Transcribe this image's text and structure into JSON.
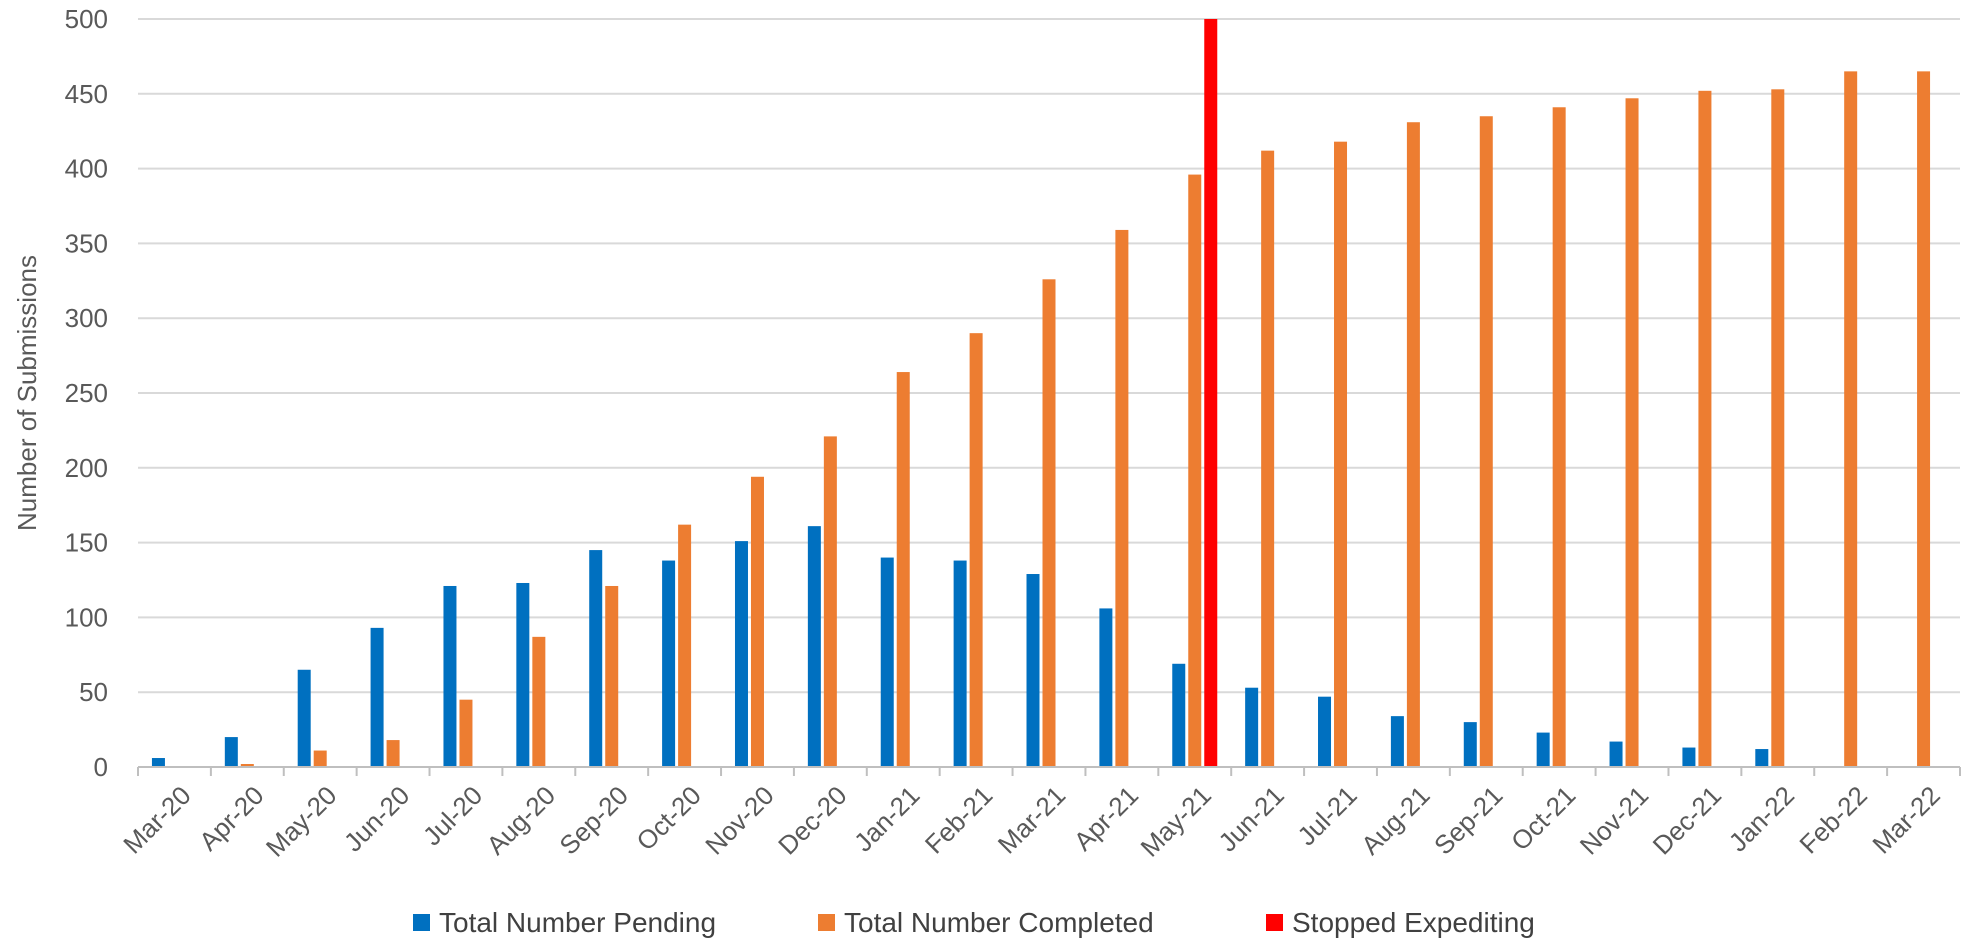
{
  "chart_data": {
    "type": "bar",
    "title": "",
    "xlabel": "",
    "ylabel": "Number of Submissions",
    "ylim": [
      0,
      500
    ],
    "yticks": [
      0,
      50,
      100,
      150,
      200,
      250,
      300,
      350,
      400,
      450,
      500
    ],
    "grid": true,
    "legend_position": "bottom",
    "categories": [
      "Mar-20",
      "Apr-20",
      "May-20",
      "Jun-20",
      "Jul-20",
      "Aug-20",
      "Sep-20",
      "Oct-20",
      "Nov-20",
      "Dec-20",
      "Jan-21",
      "Feb-21",
      "Mar-21",
      "Apr-21",
      "May-21",
      "Jun-21",
      "Jul-21",
      "Aug-21",
      "Sep-21",
      "Oct-21",
      "Nov-21",
      "Dec-21",
      "Jan-22",
      "Feb-22",
      "Mar-22"
    ],
    "series": [
      {
        "name": "Total Number Pending",
        "color": "#0070C0",
        "values": [
          6,
          20,
          65,
          93,
          121,
          123,
          145,
          138,
          151,
          161,
          140,
          138,
          129,
          106,
          69,
          53,
          47,
          34,
          30,
          23,
          17,
          13,
          12,
          0,
          0
        ]
      },
      {
        "name": "Total Number Completed",
        "color": "#ED7D31",
        "values": [
          0,
          2,
          11,
          18,
          45,
          87,
          121,
          162,
          194,
          221,
          264,
          290,
          326,
          359,
          396,
          412,
          418,
          431,
          435,
          441,
          447,
          452,
          453,
          465,
          465
        ]
      },
      {
        "name": "Stopped Expediting",
        "color": "#FF0000",
        "marker": {
          "category": "May-21",
          "value": 500
        }
      }
    ]
  }
}
